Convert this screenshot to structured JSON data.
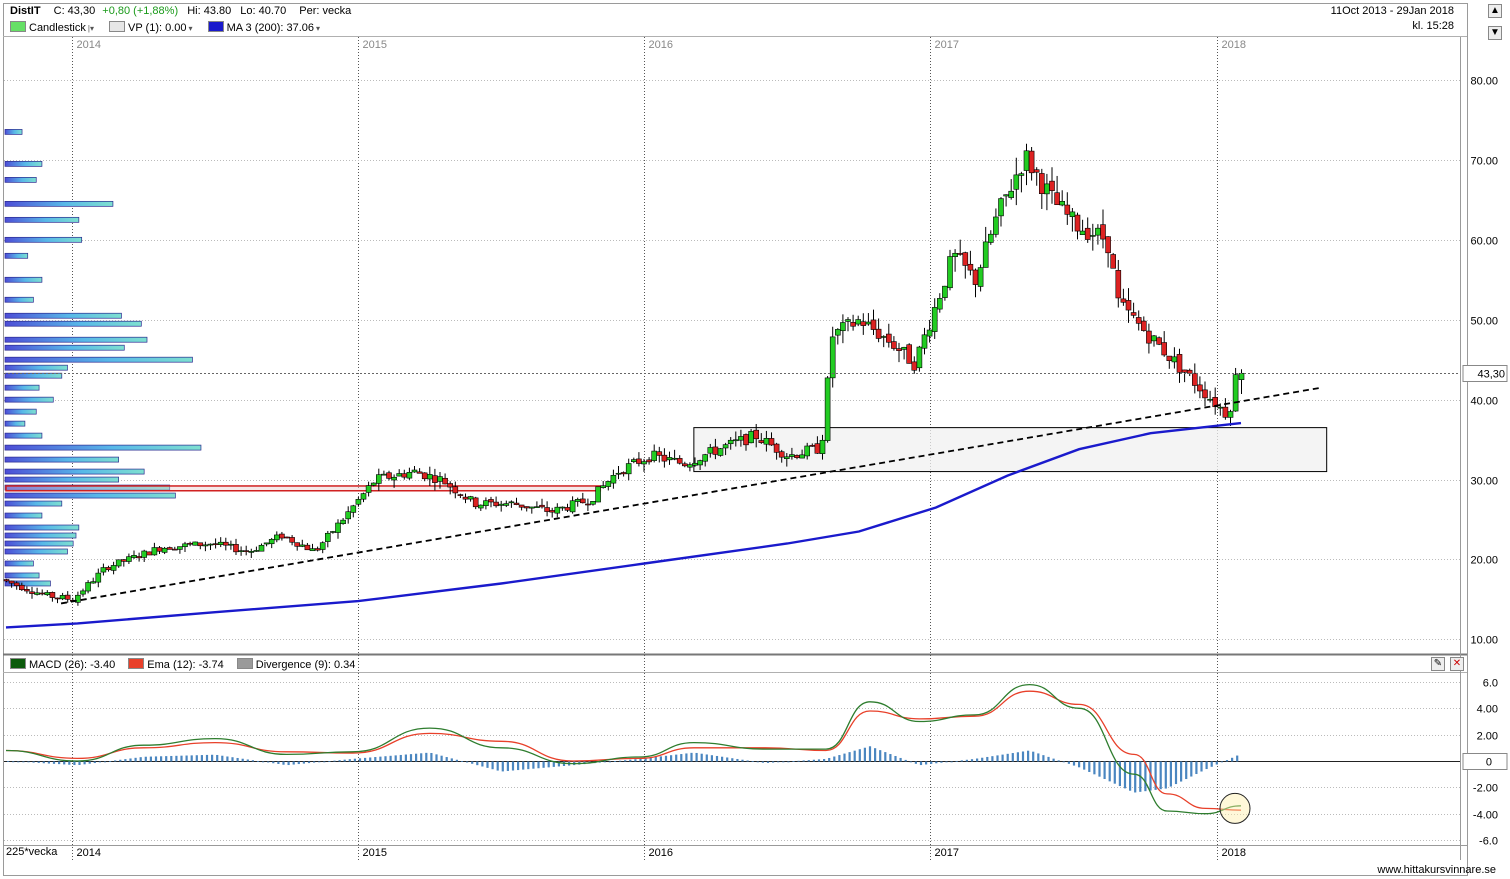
{
  "header": {
    "symbol": "DistIT",
    "close": "C: 43,30",
    "change": "+0,80 (+1,88%)",
    "high_label": "Hi:",
    "high": "43.80",
    "low_label": "Lo:",
    "low": "40.70",
    "period": "Per: vecka",
    "date_range": "11Oct 2013 - 29Jan 2018",
    "time": "kl. 15:28"
  },
  "legend": {
    "candles": "Candlestick",
    "vp": "VP (1): 0.00",
    "ma": "MA 3 (200): 37.06"
  },
  "macd_legend": {
    "macd": "MACD (26): -3.40",
    "ema": "Ema (12): -3.74",
    "divergence": "Divergence (9): 0.34"
  },
  "footer": {
    "interval": "225*vecka",
    "website": "www.hittakursvinnare.se"
  },
  "price_tag": "43,30",
  "macd_zero_tag": "0",
  "colors": {
    "up": "#22cc22",
    "down": "#dd2222",
    "ma": "#1a1acc",
    "macd": "#2e7d2e",
    "ema": "#e8402a",
    "divergence_bar": "#4a86c0"
  },
  "chart_data": [
    {
      "type": "candlestick",
      "period": "weekly",
      "x_axis": {
        "years": [
          "2014",
          "2015",
          "2016",
          "2017",
          "2018"
        ]
      },
      "y_axis": {
        "ticks": [
          "10.00",
          "20.00",
          "30.00",
          "40.00",
          "50.00",
          "60.00",
          "70.00",
          "80.00"
        ],
        "range": [
          8.3,
          85
        ]
      },
      "price_path_anchors": [
        [
          "2013-10-11",
          17.5
        ],
        [
          "2013-12-06",
          15.5
        ],
        [
          "2014-01-10",
          15.0
        ],
        [
          "2014-02-21",
          19.0
        ],
        [
          "2014-05-02",
          21.5
        ],
        [
          "2014-07-04",
          22.0
        ],
        [
          "2014-08-22",
          21.0
        ],
        [
          "2014-10-03",
          23.0
        ],
        [
          "2014-11-14",
          21.0
        ],
        [
          "2014-12-19",
          25.0
        ],
        [
          "2015-01-30",
          30.0
        ],
        [
          "2015-03-20",
          31.0
        ],
        [
          "2015-04-24",
          30.0
        ],
        [
          "2015-06-05",
          27.0
        ],
        [
          "2015-07-24",
          27.0
        ],
        [
          "2015-09-11",
          26.0
        ],
        [
          "2015-10-30",
          27.5
        ],
        [
          "2015-12-04",
          31.0
        ],
        [
          "2016-01-15",
          33.0
        ],
        [
          "2016-02-26",
          32.0
        ],
        [
          "2016-04-15",
          34.0
        ],
        [
          "2016-05-27",
          35.5
        ],
        [
          "2016-07-08",
          33.0
        ],
        [
          "2016-08-19",
          34.0
        ],
        [
          "2016-09-02",
          48.0
        ],
        [
          "2016-10-07",
          50.0
        ],
        [
          "2016-11-18",
          47.0
        ],
        [
          "2016-12-16",
          44.5
        ],
        [
          "2017-02-03",
          58.0
        ],
        [
          "2017-03-03",
          55.0
        ],
        [
          "2017-03-31",
          63.0
        ],
        [
          "2017-05-05",
          70.5
        ],
        [
          "2017-06-09",
          65.0
        ],
        [
          "2017-07-07",
          62.0
        ],
        [
          "2017-08-18",
          60.0
        ],
        [
          "2017-09-01",
          52.0
        ],
        [
          "2017-10-20",
          47.0
        ],
        [
          "2017-11-24",
          43.5
        ],
        [
          "2017-12-29",
          40.0
        ],
        [
          "2018-01-19",
          38.0
        ],
        [
          "2018-01-29",
          43.3
        ]
      ],
      "last_candle": {
        "date": "2018-01-29",
        "open": 42.5,
        "high": 43.8,
        "low": 40.7,
        "close": 43.3
      },
      "moving_average": {
        "name": "MA 3 (200)",
        "points": [
          [
            "2013-10-11",
            11.5
          ],
          [
            "2014-01-10",
            12.0
          ],
          [
            "2014-07-04",
            13.4
          ],
          [
            "2015-01-02",
            14.8
          ],
          [
            "2015-07-03",
            17.0
          ],
          [
            "2016-01-01",
            19.5
          ],
          [
            "2016-07-01",
            22.0
          ],
          [
            "2016-09-30",
            23.5
          ],
          [
            "2017-01-06",
            26.5
          ],
          [
            "2017-04-07",
            30.5
          ],
          [
            "2017-07-07",
            33.8
          ],
          [
            "2017-10-06",
            35.8
          ],
          [
            "2018-01-29",
            37.06
          ]
        ]
      },
      "trendline": {
        "start": [
          "2013-12-20",
          14.5
        ],
        "end": [
          "2018-05-11",
          41.5
        ],
        "style": "dashed"
      },
      "support_zone": {
        "from": "2016-03-04",
        "to": "2018-05-18",
        "low": 31.0,
        "high": 36.5
      },
      "resistance_zone": {
        "from": "2013-10-11",
        "to": "2015-11-06",
        "low": 28.6,
        "high": 29.2
      },
      "volume_profile": [
        [
          73.5,
          0.06
        ],
        [
          69.5,
          0.13
        ],
        [
          67.5,
          0.11
        ],
        [
          64.5,
          0.38
        ],
        [
          62.5,
          0.26
        ],
        [
          60.0,
          0.27
        ],
        [
          58.0,
          0.08
        ],
        [
          55.0,
          0.13
        ],
        [
          52.5,
          0.1
        ],
        [
          50.5,
          0.41
        ],
        [
          49.5,
          0.48
        ],
        [
          47.5,
          0.5
        ],
        [
          46.5,
          0.42
        ],
        [
          45.0,
          0.66
        ],
        [
          44.0,
          0.22
        ],
        [
          43.0,
          0.2
        ],
        [
          41.5,
          0.12
        ],
        [
          40.0,
          0.17
        ],
        [
          38.5,
          0.11
        ],
        [
          37.0,
          0.07
        ],
        [
          35.5,
          0.13
        ],
        [
          34.0,
          0.69
        ],
        [
          32.5,
          0.4
        ],
        [
          31.0,
          0.49
        ],
        [
          30.0,
          0.4
        ],
        [
          29.0,
          0.58
        ],
        [
          28.0,
          0.6
        ],
        [
          27.0,
          0.2
        ],
        [
          25.5,
          0.13
        ],
        [
          24.0,
          0.26
        ],
        [
          23.0,
          0.25
        ],
        [
          22.0,
          0.24
        ],
        [
          21.0,
          0.22
        ],
        [
          19.5,
          0.1
        ],
        [
          18.0,
          0.12
        ],
        [
          17.0,
          0.16
        ]
      ]
    },
    {
      "type": "line",
      "title": "MACD",
      "y_axis": {
        "ticks": [
          "6.0",
          "4.00",
          "2.00",
          "-2.00",
          "-4.00",
          "-6.0"
        ],
        "range": [
          -6,
          6
        ]
      },
      "series": [
        {
          "name": "MACD (26)",
          "points": [
            [
              "2013-10-11",
              0.8
            ],
            [
              "2014-01-10",
              0.0
            ],
            [
              "2014-04-04",
              1.2
            ],
            [
              "2014-07-04",
              1.7
            ],
            [
              "2014-10-03",
              0.5
            ],
            [
              "2014-12-26",
              0.7
            ],
            [
              "2015-04-03",
              2.5
            ],
            [
              "2015-07-03",
              1.0
            ],
            [
              "2015-10-02",
              -0.2
            ],
            [
              "2015-12-25",
              0.3
            ],
            [
              "2016-03-04",
              1.4
            ],
            [
              "2016-06-03",
              0.9
            ],
            [
              "2016-08-19",
              0.9
            ],
            [
              "2016-10-14",
              4.5
            ],
            [
              "2016-12-16",
              3.0
            ],
            [
              "2017-02-24",
              3.5
            ],
            [
              "2017-05-05",
              5.8
            ],
            [
              "2017-07-07",
              4.0
            ],
            [
              "2017-09-15",
              -1.0
            ],
            [
              "2017-10-27",
              -3.8
            ],
            [
              "2017-12-15",
              -4.0
            ],
            [
              "2018-01-29",
              -3.4
            ]
          ]
        },
        {
          "name": "Ema (12)",
          "points": [
            [
              "2013-10-11",
              0.8
            ],
            [
              "2014-01-10",
              0.2
            ],
            [
              "2014-04-04",
              1.0
            ],
            [
              "2014-07-04",
              1.4
            ],
            [
              "2014-10-03",
              0.7
            ],
            [
              "2014-12-26",
              0.6
            ],
            [
              "2015-04-03",
              2.1
            ],
            [
              "2015-07-03",
              1.5
            ],
            [
              "2015-10-02",
              0.0
            ],
            [
              "2015-12-25",
              0.2
            ],
            [
              "2016-03-04",
              1.0
            ],
            [
              "2016-06-03",
              1.0
            ],
            [
              "2016-08-19",
              0.8
            ],
            [
              "2016-10-14",
              3.8
            ],
            [
              "2016-12-16",
              3.2
            ],
            [
              "2017-02-24",
              3.4
            ],
            [
              "2017-05-05",
              5.3
            ],
            [
              "2017-07-07",
              4.3
            ],
            [
              "2017-09-15",
              0.5
            ],
            [
              "2017-10-27",
              -2.5
            ],
            [
              "2017-12-15",
              -3.6
            ],
            [
              "2018-01-29",
              -3.74
            ]
          ]
        },
        {
          "name": "Divergence (9)",
          "kind": "histogram",
          "last": 0.34
        }
      ]
    }
  ]
}
